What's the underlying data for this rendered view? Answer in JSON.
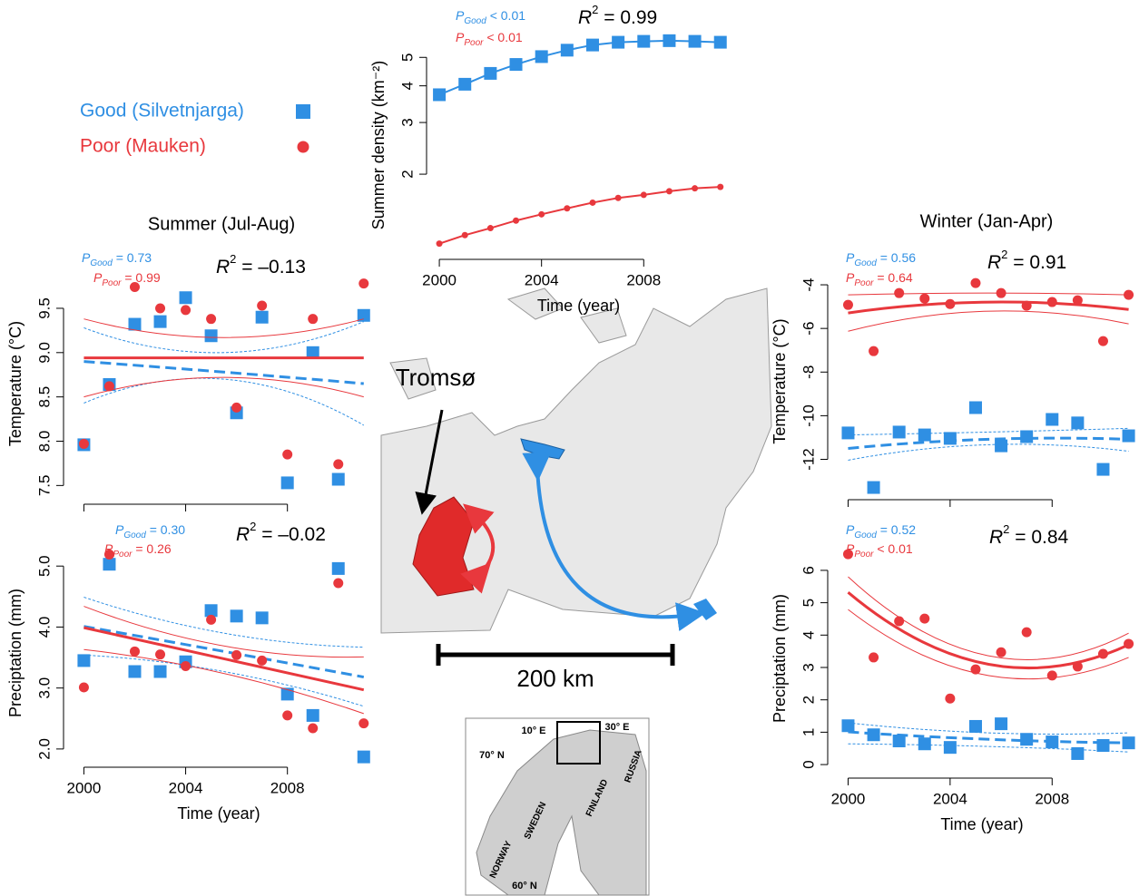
{
  "chart_data": [
    {
      "type": "line",
      "ylabel": "Summer density (km⁻²)",
      "xlabel": "Time (year)",
      "x": [
        2000,
        2001,
        2002,
        2003,
        2004,
        2005,
        2006,
        2007,
        2008,
        2009,
        2010,
        2011
      ],
      "xlim": [
        1999.5,
        2011.4
      ],
      "xticks": [
        2000,
        2004,
        2008
      ],
      "ylim": [
        1.07,
        5.9
      ],
      "yticks": [
        2,
        3,
        4,
        5
      ],
      "log_y": true,
      "annotations": [
        {
          "symbol": "P",
          "sub": "Good",
          "text": " < 0.01",
          "color": "#2f8fe3"
        },
        {
          "symbol": "P",
          "sub": "Poor",
          "text": " < 0.01",
          "color": "#e8383d"
        },
        {
          "symbol": "R",
          "sup": "2",
          "text": " = 0.99",
          "color": "#000000"
        }
      ],
      "series": [
        {
          "name": "Good (Silvetnjarga)",
          "color": "#2f8fe3",
          "marker": "square",
          "values": [
            3.73,
            4.05,
            4.41,
            4.73,
            5.03,
            5.29,
            5.51,
            5.63,
            5.67,
            5.7,
            5.67,
            5.63
          ]
        },
        {
          "name": "Poor (Mauken)",
          "color": "#e8383d",
          "marker": "circle",
          "values": [
            1.16,
            1.24,
            1.31,
            1.39,
            1.46,
            1.53,
            1.6,
            1.66,
            1.7,
            1.75,
            1.79,
            1.81
          ]
        }
      ]
    },
    {
      "type": "scatter",
      "title": "Summer (Jul-Aug)",
      "ylabel": "Temperature (°C)",
      "x": [
        2000,
        2001,
        2002,
        2003,
        2004,
        2005,
        2006,
        2007,
        2008,
        2009,
        2010,
        2011
      ],
      "xlim": [
        1999.2,
        2011.4
      ],
      "xticks": [
        2000,
        2004,
        2008
      ],
      "show_xtick_labels": false,
      "ylim": [
        7.35,
        9.95
      ],
      "yticks": [
        7.5,
        {
          "value": 8,
          "label": "8.0"
        },
        8.5,
        {
          "value": 9,
          "label": "9.0"
        },
        9.5
      ],
      "fit_x": [
        2000,
        2005.5,
        2011
      ],
      "annotations": [
        {
          "symbol": "P",
          "sub": "Good",
          "text": " = 0.73",
          "color": "#2f8fe3"
        },
        {
          "symbol": "P",
          "sub": "Poor",
          "text": " = 0.99",
          "color": "#e8383d"
        },
        {
          "symbol": "R",
          "sup": "2",
          "text": " = –0.13",
          "color": "#000000"
        }
      ],
      "series": [
        {
          "color": "#2f8fe3",
          "marker": "square",
          "dashed": true,
          "values": [
            7.96,
            8.64,
            9.32,
            9.35,
            9.62,
            9.19,
            8.32,
            9.4,
            7.53,
            9.0,
            7.57,
            9.42
          ],
          "fit": [
            8.9,
            8.78,
            8.65
          ],
          "fit_lower": [
            8.43,
            8.7,
            8.18
          ],
          "fit_upper": [
            9.28,
            9.0,
            9.35
          ]
        },
        {
          "color": "#e8383d",
          "marker": "circle",
          "dashed": false,
          "values": [
            7.97,
            8.62,
            9.74,
            9.5,
            9.48,
            9.38,
            8.38,
            9.53,
            7.85,
            9.38,
            7.74,
            9.78
          ],
          "fit": [
            8.94,
            8.94,
            8.94
          ],
          "fit_lower": [
            8.5,
            8.72,
            8.5
          ],
          "fit_upper": [
            9.38,
            9.17,
            9.38
          ]
        }
      ]
    },
    {
      "type": "scatter",
      "ylabel": "Preciptation (mm)",
      "xlabel": "Time (year)",
      "x": [
        2000,
        2001,
        2002,
        2003,
        2004,
        2005,
        2006,
        2007,
        2008,
        2009,
        2010,
        2011
      ],
      "xlim": [
        1999.2,
        2011.4
      ],
      "xticks": [
        2000,
        2004,
        2008
      ],
      "ylim": [
        1.79,
        5.36
      ],
      "yticks": [
        {
          "value": 2,
          "label": "2.0"
        },
        {
          "value": 3,
          "label": "3.0"
        },
        {
          "value": 4,
          "label": "4.0"
        },
        {
          "value": 5,
          "label": "5.0"
        }
      ],
      "fit_x": [
        2000,
        2005.5,
        2011
      ],
      "annotations": [
        {
          "symbol": "P",
          "sub": "Good",
          "text": " = 0.30",
          "color": "#2f8fe3"
        },
        {
          "symbol": "P",
          "sub": "Poor",
          "text": " = 0.26",
          "color": "#e8383d"
        },
        {
          "symbol": "R",
          "sup": "2",
          "text": " = –0.02",
          "color": "#000000"
        }
      ],
      "series": [
        {
          "color": "#2f8fe3",
          "marker": "square",
          "dashed": true,
          "values": [
            3.45,
            5.03,
            3.27,
            3.27,
            3.43,
            4.27,
            4.18,
            4.15,
            2.9,
            2.55,
            4.96,
            1.87
          ],
          "fit": [
            4.01,
            3.6,
            3.18
          ],
          "fit_lower": [
            3.54,
            3.27,
            2.7
          ],
          "fit_upper": [
            4.49,
            3.9,
            3.67
          ]
        },
        {
          "color": "#e8383d",
          "marker": "circle",
          "dashed": false,
          "values": [
            3.01,
            5.19,
            3.6,
            3.55,
            3.36,
            4.12,
            3.54,
            3.45,
            2.55,
            2.34,
            4.72,
            2.42
          ],
          "fit": [
            3.99,
            3.48,
            2.97
          ],
          "fit_lower": [
            3.63,
            3.24,
            2.58
          ],
          "fit_upper": [
            4.34,
            3.69,
            3.51
          ]
        }
      ]
    },
    {
      "type": "scatter",
      "title": "Winter (Jan-Apr)",
      "ylabel": "Temperature (°C)",
      "x": [
        2000,
        2001,
        2002,
        2003,
        2004,
        2005,
        2006,
        2007,
        2008,
        2009,
        2010,
        2011
      ],
      "xlim": [
        1999.2,
        2011.3
      ],
      "xticks": [
        2000,
        2004,
        2008
      ],
      "show_xtick_labels": false,
      "ylim": [
        -13.6,
        -3.25
      ],
      "yticks": [
        -12,
        -10,
        -8,
        -6,
        -4
      ],
      "fit_x": [
        2000,
        2005.5,
        2011
      ],
      "annotations": [
        {
          "symbol": "P",
          "sub": "Good",
          "text": " = 0.56",
          "color": "#2f8fe3"
        },
        {
          "symbol": "P",
          "sub": "Poor",
          "text": " = 0.64",
          "color": "#e8383d"
        },
        {
          "symbol": "R",
          "sup": "2",
          "text": " = 0.91",
          "color": "#000000"
        }
      ],
      "series": [
        {
          "color": "#2f8fe3",
          "marker": "square",
          "dashed": true,
          "values": [
            -10.79,
            -13.29,
            -10.75,
            -10.88,
            -11.04,
            -9.63,
            -11.38,
            -10.96,
            -10.17,
            -10.33,
            -12.46,
            -10.92
          ],
          "fit": [
            -11.5,
            -11.08,
            -11.08
          ],
          "fit_lower": [
            -12.04,
            -11.33,
            -11.63
          ],
          "fit_upper": [
            -10.88,
            -10.75,
            -10.58
          ]
        },
        {
          "color": "#e8383d",
          "marker": "circle",
          "dashed": false,
          "values": [
            -4.92,
            -7.04,
            -4.38,
            -4.63,
            -4.88,
            -3.92,
            -4.38,
            -4.96,
            -4.79,
            -4.71,
            -6.58,
            -4.46
          ],
          "fit": [
            -5.29,
            -4.79,
            -5.13
          ],
          "fit_lower": [
            -6.13,
            -5.21,
            -5.79
          ],
          "fit_upper": [
            -4.46,
            -4.38,
            -4.46
          ]
        }
      ]
    },
    {
      "type": "scatter",
      "ylabel": "Preciptation (mm)",
      "xlabel": "Time (year)",
      "x": [
        2000,
        2001,
        2002,
        2003,
        2004,
        2005,
        2006,
        2007,
        2008,
        2009,
        2010,
        2011
      ],
      "xlim": [
        1999.2,
        2011.3
      ],
      "xticks": [
        2000,
        2004,
        2008
      ],
      "ylim": [
        -0.25,
        6.81
      ],
      "yticks": [
        0,
        1,
        2,
        3,
        4,
        5,
        6
      ],
      "fit_x": [
        2000,
        2005.5,
        2011
      ],
      "annotations": [
        {
          "symbol": "P",
          "sub": "Good",
          "text": " = 0.52",
          "color": "#2f8fe3"
        },
        {
          "symbol": "P",
          "sub": "Poor",
          "text": " < 0.01",
          "color": "#e8383d"
        },
        {
          "symbol": "R",
          "sup": "2",
          "text": " = 0.84",
          "color": "#000000"
        }
      ],
      "series": [
        {
          "color": "#2f8fe3",
          "marker": "square",
          "dashed": true,
          "values": [
            1.2,
            0.92,
            0.73,
            0.64,
            0.53,
            1.18,
            1.26,
            0.78,
            0.7,
            0.34,
            0.59,
            0.67
          ],
          "fit": [
            1.01,
            0.78,
            0.67
          ],
          "fit_lower": [
            0.64,
            0.56,
            0.39
          ],
          "fit_upper": [
            1.29,
            0.98,
            0.98
          ]
        },
        {
          "color": "#e8383d",
          "marker": "circle",
          "dashed": false,
          "values": [
            6.5,
            3.31,
            4.43,
            4.51,
            2.04,
            2.94,
            3.47,
            4.09,
            2.75,
            3.03,
            3.42,
            3.73
          ],
          "fit": [
            5.32,
            3.1,
            3.7
          ],
          "fit_lower": [
            4.79,
            2.75,
            3.31
          ],
          "fit_upper": [
            5.8,
            3.36,
            4.06
          ]
        }
      ]
    }
  ],
  "map": {
    "city": "Tromsø",
    "scale": "200 km",
    "inset": {
      "lon1": "10° E",
      "lon2": "30° E",
      "lat1": "70° N",
      "lat2": "60° N",
      "countries": [
        "NORWAY",
        "SWEDEN",
        "FINLAND",
        "RUSSIA"
      ]
    }
  }
}
